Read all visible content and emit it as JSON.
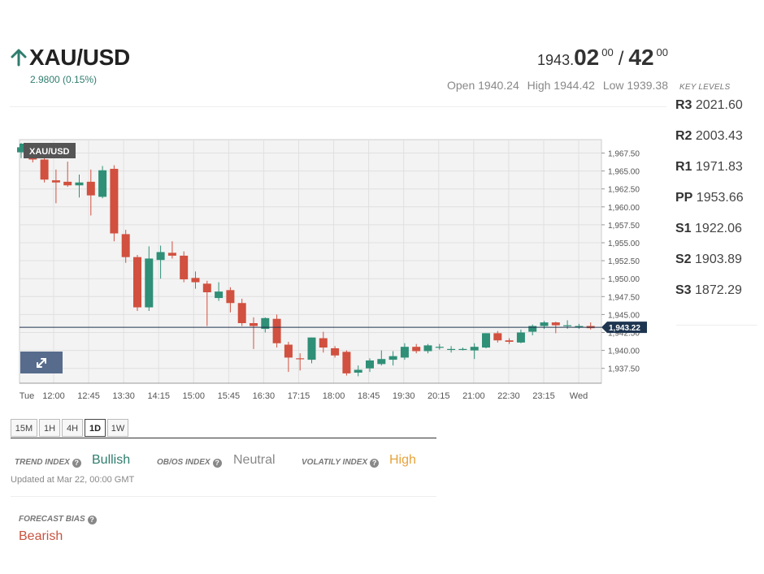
{
  "instrument": {
    "symbol": "XAU/USD",
    "change": "2.9800 (0.15%)",
    "direction": "up",
    "up_color": "#2f7d6e"
  },
  "quote": {
    "bid_base": "1943.",
    "bid_big": "02",
    "bid_sup": "00",
    "separator": "/",
    "ask_big": "42",
    "ask_sup": "00"
  },
  "ohl": {
    "open": "Open 1940.24",
    "high": "High 1944.42",
    "low": "Low 1939.38"
  },
  "key_levels": {
    "title": "KEY LEVELS",
    "levels": [
      {
        "name": "R3",
        "value": "2021.60"
      },
      {
        "name": "R2",
        "value": "2003.43"
      },
      {
        "name": "R1",
        "value": "1971.83"
      },
      {
        "name": "PP",
        "value": "1953.66"
      },
      {
        "name": "S1",
        "value": "1922.06"
      },
      {
        "name": "S2",
        "value": "1903.89"
      },
      {
        "name": "S3",
        "value": "1872.29"
      }
    ]
  },
  "chart_data": {
    "type": "candlestick",
    "legend": "XAU/USD",
    "ylim": [
      1935.5,
      1969.5
    ],
    "y_ticks": [
      {
        "value": 1967.5,
        "label": "1,967.50"
      },
      {
        "value": 1965.0,
        "label": "1,965.00"
      },
      {
        "value": 1962.5,
        "label": "1,962.50"
      },
      {
        "value": 1960.0,
        "label": "1,960.00"
      },
      {
        "value": 1957.5,
        "label": "1,957.50"
      },
      {
        "value": 1955.0,
        "label": "1,955.00"
      },
      {
        "value": 1952.5,
        "label": "1,952.50"
      },
      {
        "value": 1950.0,
        "label": "1,950.00"
      },
      {
        "value": 1947.5,
        "label": "1,947.50"
      },
      {
        "value": 1945.0,
        "label": "1,945.00"
      },
      {
        "value": 1942.5,
        "label": "1,942.50"
      },
      {
        "value": 1940.0,
        "label": "1,940.00"
      },
      {
        "value": 1937.5,
        "label": "1,937.50"
      }
    ],
    "x_labels": [
      "Tue",
      "12:00",
      "12:45",
      "13:30",
      "14:15",
      "15:00",
      "15:45",
      "16:30",
      "17:15",
      "18:00",
      "18:45",
      "19:30",
      "20:15",
      "21:00",
      "22:30",
      "23:15",
      "Wed"
    ],
    "current_price": {
      "value": 1943.22,
      "label": "1,943.22"
    },
    "up_color": "#2f8f77",
    "down_color": "#d1503f",
    "candles": [
      {
        "o": 1967.6,
        "h": 1968.9,
        "l": 1966.8,
        "c": 1968.3
      },
      {
        "o": 1967.2,
        "h": 1967.9,
        "l": 1966.2,
        "c": 1966.6
      },
      {
        "o": 1966.6,
        "h": 1967.0,
        "l": 1963.4,
        "c": 1963.8
      },
      {
        "o": 1963.7,
        "h": 1965.2,
        "l": 1960.5,
        "c": 1963.4
      },
      {
        "o": 1963.5,
        "h": 1966.3,
        "l": 1962.8,
        "c": 1963.0
      },
      {
        "o": 1963.0,
        "h": 1964.5,
        "l": 1961.3,
        "c": 1963.4
      },
      {
        "o": 1963.5,
        "h": 1965.2,
        "l": 1958.8,
        "c": 1961.6
      },
      {
        "o": 1961.4,
        "h": 1965.7,
        "l": 1961.2,
        "c": 1965.1
      },
      {
        "o": 1965.3,
        "h": 1965.8,
        "l": 1955.2,
        "c": 1956.3
      },
      {
        "o": 1956.2,
        "h": 1956.8,
        "l": 1952.2,
        "c": 1953.0
      },
      {
        "o": 1953.0,
        "h": 1953.3,
        "l": 1945.5,
        "c": 1946.0
      },
      {
        "o": 1946.0,
        "h": 1954.5,
        "l": 1945.5,
        "c": 1952.8
      },
      {
        "o": 1952.6,
        "h": 1954.6,
        "l": 1950.0,
        "c": 1953.7
      },
      {
        "o": 1953.6,
        "h": 1955.2,
        "l": 1952.8,
        "c": 1953.2
      },
      {
        "o": 1953.2,
        "h": 1953.8,
        "l": 1949.5,
        "c": 1949.9
      },
      {
        "o": 1950.1,
        "h": 1951.0,
        "l": 1948.6,
        "c": 1949.5
      },
      {
        "o": 1949.3,
        "h": 1949.7,
        "l": 1943.4,
        "c": 1948.1
      },
      {
        "o": 1947.3,
        "h": 1949.5,
        "l": 1946.9,
        "c": 1948.2
      },
      {
        "o": 1948.4,
        "h": 1948.8,
        "l": 1945.3,
        "c": 1946.6
      },
      {
        "o": 1946.6,
        "h": 1947.2,
        "l": 1943.4,
        "c": 1943.8
      },
      {
        "o": 1943.8,
        "h": 1944.6,
        "l": 1940.2,
        "c": 1943.4
      },
      {
        "o": 1943.0,
        "h": 1944.6,
        "l": 1942.5,
        "c": 1944.5
      },
      {
        "o": 1944.4,
        "h": 1945.0,
        "l": 1940.4,
        "c": 1941.0
      },
      {
        "o": 1940.8,
        "h": 1941.2,
        "l": 1937.0,
        "c": 1939.0
      },
      {
        "o": 1938.9,
        "h": 1939.6,
        "l": 1937.2,
        "c": 1938.8
      },
      {
        "o": 1938.7,
        "h": 1941.8,
        "l": 1938.2,
        "c": 1941.8
      },
      {
        "o": 1941.7,
        "h": 1942.6,
        "l": 1939.7,
        "c": 1940.4
      },
      {
        "o": 1940.3,
        "h": 1940.6,
        "l": 1939.0,
        "c": 1939.3
      },
      {
        "o": 1939.8,
        "h": 1940.0,
        "l": 1936.5,
        "c": 1936.8
      },
      {
        "o": 1936.9,
        "h": 1937.9,
        "l": 1936.4,
        "c": 1937.3
      },
      {
        "o": 1937.5,
        "h": 1938.9,
        "l": 1937.0,
        "c": 1938.6
      },
      {
        "o": 1938.1,
        "h": 1940.0,
        "l": 1937.9,
        "c": 1938.8
      },
      {
        "o": 1938.7,
        "h": 1939.9,
        "l": 1937.9,
        "c": 1939.2
      },
      {
        "o": 1939.0,
        "h": 1941.0,
        "l": 1938.7,
        "c": 1940.5
      },
      {
        "o": 1940.5,
        "h": 1940.9,
        "l": 1939.6,
        "c": 1939.9
      },
      {
        "o": 1939.9,
        "h": 1940.9,
        "l": 1939.6,
        "c": 1940.7
      },
      {
        "o": 1940.4,
        "h": 1940.9,
        "l": 1940.1,
        "c": 1940.5
      },
      {
        "o": 1940.2,
        "h": 1940.6,
        "l": 1939.7,
        "c": 1940.2
      },
      {
        "o": 1940.1,
        "h": 1940.4,
        "l": 1940.0,
        "c": 1940.2
      },
      {
        "o": 1940.0,
        "h": 1941.0,
        "l": 1938.8,
        "c": 1940.5
      },
      {
        "o": 1940.4,
        "h": 1942.4,
        "l": 1940.3,
        "c": 1942.4
      },
      {
        "o": 1942.4,
        "h": 1942.7,
        "l": 1941.1,
        "c": 1941.4
      },
      {
        "o": 1941.4,
        "h": 1941.7,
        "l": 1940.9,
        "c": 1941.2
      },
      {
        "o": 1941.1,
        "h": 1942.9,
        "l": 1941.0,
        "c": 1942.5
      },
      {
        "o": 1942.6,
        "h": 1943.6,
        "l": 1942.1,
        "c": 1943.4
      },
      {
        "o": 1943.4,
        "h": 1944.1,
        "l": 1943.0,
        "c": 1943.9
      },
      {
        "o": 1943.9,
        "h": 1944.0,
        "l": 1942.4,
        "c": 1943.5
      },
      {
        "o": 1943.4,
        "h": 1944.2,
        "l": 1943.0,
        "c": 1943.5
      },
      {
        "o": 1943.2,
        "h": 1943.7,
        "l": 1943.0,
        "c": 1943.4
      },
      {
        "o": 1943.4,
        "h": 1943.9,
        "l": 1942.9,
        "c": 1943.1
      }
    ]
  },
  "timeframes": [
    {
      "label": "15M",
      "active": false
    },
    {
      "label": "1H",
      "active": false
    },
    {
      "label": "4H",
      "active": false
    },
    {
      "label": "1D",
      "active": true
    },
    {
      "label": "1W",
      "active": false
    }
  ],
  "indices": {
    "trend": {
      "label": "TREND INDEX",
      "value": "Bullish",
      "color": "#2f7d6e"
    },
    "obos": {
      "label": "OB/OS INDEX",
      "value": "Neutral",
      "color": "#888888"
    },
    "volatility": {
      "label": "VOLATILY INDEX",
      "value": "High",
      "color": "#e8a33a"
    },
    "help_icon": "?"
  },
  "updated": "Updated at Mar 22, 00:00 GMT",
  "forecast": {
    "label": "FORECAST BIAS",
    "value": "Bearish",
    "color": "#c85440"
  }
}
